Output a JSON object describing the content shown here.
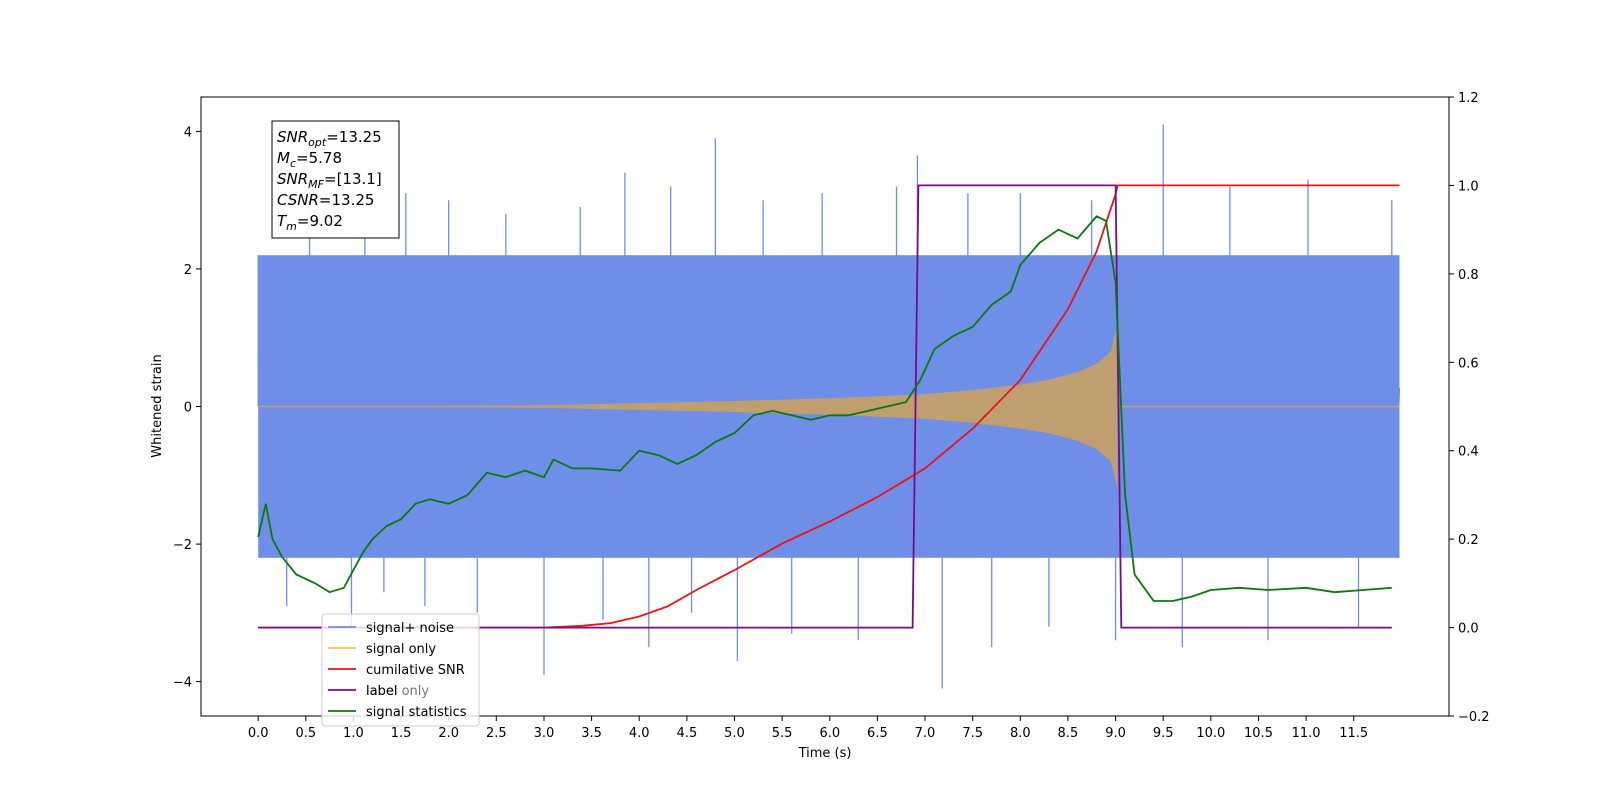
{
  "chart_data": {
    "type": "line",
    "xlabel": "Time (s)",
    "ylabel": "Whitened strain",
    "xlim": [
      -0.6,
      12.5
    ],
    "ylim": [
      -4.5,
      4.5
    ],
    "y2lim": [
      -0.2,
      1.2
    ],
    "x_ticks": [
      0.0,
      0.5,
      1.0,
      1.5,
      2.0,
      2.5,
      3.0,
      3.5,
      4.0,
      4.5,
      5.0,
      5.5,
      6.0,
      6.5,
      7.0,
      7.5,
      8.0,
      8.5,
      9.0,
      9.5,
      10.0,
      10.5,
      11.0,
      11.5
    ],
    "x_tick_labels": [
      "0.0",
      "0.5",
      "1.0",
      "1.5",
      "2.0",
      "2.5",
      "3.0",
      "3.5",
      "4.0",
      "4.5",
      "5.0",
      "5.5",
      "6.0",
      "6.5",
      "7.0",
      "7.5",
      "8.0",
      "8.5",
      "9.0",
      "9.5",
      "10.0",
      "10.5",
      "11.0",
      "11.5"
    ],
    "y_ticks": [
      -4,
      -2,
      0,
      2,
      4
    ],
    "y_tick_labels": [
      "−4",
      "−2",
      "0",
      "2",
      "4"
    ],
    "y2_ticks": [
      -0.2,
      0.0,
      0.2,
      0.4,
      0.6,
      0.8,
      1.0,
      1.2
    ],
    "y2_tick_labels": [
      "−0.2",
      "0.0",
      "0.2",
      "0.4",
      "0.6",
      "0.8",
      "1.0",
      "1.2"
    ],
    "grid": false,
    "legend_position": "lower-left",
    "colors": {
      "noise": "#6f8ee8",
      "signal": "#ffc04d",
      "overlap": "#bf9f70",
      "cumulative_snr": "#ee1111",
      "label": "#7b0a87",
      "statistics": "#0a7a0a"
    },
    "series": [
      {
        "name": "signal+ noise",
        "axis": "left",
        "noise_band": {
          "t_start": 0.0,
          "t_end": 11.98,
          "dense_lower": -2.2,
          "dense_upper": 2.2
        },
        "x": [
          0.0,
          0.3,
          0.54,
          0.98,
          1.12,
          1.32,
          1.55,
          1.75,
          2.0,
          2.3,
          2.6,
          3.0,
          3.38,
          3.62,
          3.85,
          4.1,
          4.33,
          4.55,
          4.8,
          5.03,
          5.3,
          5.6,
          5.92,
          6.3,
          6.7,
          6.92,
          7.18,
          7.45,
          7.7,
          8.0,
          8.3,
          8.75,
          9.0,
          9.5,
          9.7,
          10.2,
          10.6,
          11.02,
          11.55,
          11.9
        ],
        "y": [
          2.2,
          -2.9,
          2.9,
          -3.2,
          3.2,
          -2.7,
          3.1,
          -2.9,
          3.0,
          -3.0,
          2.8,
          -3.9,
          2.9,
          -3.1,
          3.4,
          -3.5,
          3.2,
          -3.0,
          3.9,
          -3.7,
          3.0,
          -3.3,
          3.1,
          -3.4,
          3.2,
          3.65,
          -4.1,
          3.1,
          -3.5,
          3.1,
          -3.2,
          3.0,
          -3.4,
          4.1,
          -3.5,
          3.2,
          -3.4,
          3.3,
          -3.2,
          3.0
        ]
      },
      {
        "name": "signal only",
        "axis": "left",
        "x": [
          0.0,
          1.5,
          3.0,
          4.0,
          5.0,
          6.0,
          6.5,
          7.0,
          7.5,
          8.0,
          8.3,
          8.6,
          8.8,
          8.95,
          9.02
        ],
        "amplitude": [
          0.0,
          0.005,
          0.02,
          0.05,
          0.08,
          0.12,
          0.15,
          0.18,
          0.24,
          0.32,
          0.39,
          0.5,
          0.62,
          0.8,
          1.2
        ],
        "after_merger": {
          "t_start": 9.02,
          "t_end": 11.98,
          "value": 0.0
        }
      },
      {
        "name": "cumilative SNR",
        "axis": "right",
        "x": [
          0.0,
          1.0,
          2.0,
          3.0,
          3.4,
          3.7,
          4.0,
          4.3,
          4.6,
          5.0,
          5.5,
          6.0,
          6.5,
          7.0,
          7.5,
          8.0,
          8.5,
          8.8,
          9.0,
          9.02,
          10.0,
          11.0,
          11.98
        ],
        "y": [
          0.0,
          0.0,
          0.0,
          0.0,
          0.004,
          0.01,
          0.025,
          0.048,
          0.085,
          0.13,
          0.19,
          0.24,
          0.295,
          0.36,
          0.45,
          0.56,
          0.72,
          0.85,
          0.98,
          1.0,
          1.0,
          1.0,
          1.0
        ]
      },
      {
        "name": "label",
        "axis": "right",
        "x": [
          0.0,
          6.87,
          6.93,
          9.0,
          9.06,
          11.9
        ],
        "y": [
          0.0,
          0.0,
          1.0,
          1.0,
          0.0,
          0.0
        ]
      },
      {
        "name": "label only",
        "axis": "right",
        "x": [],
        "y": []
      },
      {
        "name": "signal statistics",
        "axis": "right",
        "x": [
          0.0,
          0.08,
          0.15,
          0.25,
          0.4,
          0.6,
          0.75,
          0.9,
          1.0,
          1.1,
          1.2,
          1.35,
          1.5,
          1.65,
          1.8,
          2.0,
          2.2,
          2.4,
          2.6,
          2.8,
          3.0,
          3.1,
          3.3,
          3.5,
          3.8,
          4.0,
          4.2,
          4.4,
          4.6,
          4.8,
          5.0,
          5.2,
          5.4,
          5.6,
          5.8,
          6.0,
          6.2,
          6.4,
          6.6,
          6.8,
          6.95,
          7.1,
          7.3,
          7.5,
          7.7,
          7.9,
          8.0,
          8.2,
          8.4,
          8.6,
          8.8,
          8.9,
          9.0,
          9.1,
          9.2,
          9.4,
          9.6,
          9.8,
          10.0,
          10.3,
          10.6,
          11.0,
          11.3,
          11.6,
          11.9
        ],
        "y": [
          0.205,
          0.28,
          0.2,
          0.16,
          0.12,
          0.1,
          0.08,
          0.09,
          0.13,
          0.17,
          0.2,
          0.23,
          0.245,
          0.28,
          0.29,
          0.28,
          0.3,
          0.35,
          0.34,
          0.355,
          0.34,
          0.38,
          0.36,
          0.36,
          0.355,
          0.4,
          0.39,
          0.37,
          0.39,
          0.42,
          0.44,
          0.48,
          0.49,
          0.48,
          0.47,
          0.48,
          0.48,
          0.49,
          0.5,
          0.51,
          0.56,
          0.63,
          0.66,
          0.68,
          0.73,
          0.76,
          0.82,
          0.87,
          0.9,
          0.88,
          0.93,
          0.92,
          0.78,
          0.3,
          0.12,
          0.06,
          0.06,
          0.07,
          0.085,
          0.09,
          0.085,
          0.09,
          0.08,
          0.085,
          0.09
        ]
      }
    ],
    "legend": [
      "signal+ noise",
      "signal only",
      "cumilative SNR",
      "label",
      "label only",
      "signal statistics"
    ],
    "annotation_box": {
      "position": "top-left",
      "lines": [
        {
          "main": "SNR",
          "sub": "opt",
          "rest": "=13.25"
        },
        {
          "main": "M",
          "sub": "c",
          "rest": "=5.78"
        },
        {
          "main": "SNR",
          "sub": "MF",
          "rest": "=[13.1]"
        },
        {
          "main": "CSNR",
          "sub": "",
          "rest": "=13.25"
        },
        {
          "main": "T",
          "sub": "m",
          "rest": "=9.02"
        }
      ]
    }
  }
}
